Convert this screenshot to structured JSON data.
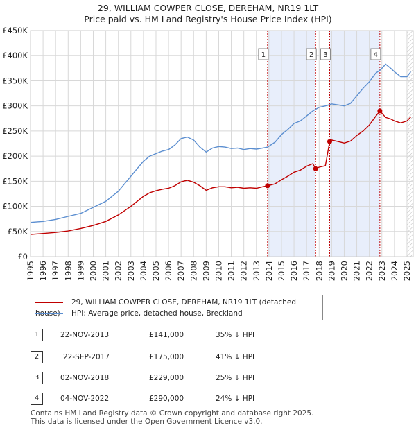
{
  "title_line1": "29, WILLIAM COWPER CLOSE, DEREHAM, NR19 1LT",
  "title_line2": "Price paid vs. HM Land Registry's House Price Index (HPI)",
  "chart_data": {
    "type": "line",
    "x_range": [
      1995.0,
      2025.5
    ],
    "ylim": [
      0,
      450000
    ],
    "y_ticks": [
      0,
      50000,
      100000,
      150000,
      200000,
      250000,
      300000,
      350000,
      400000,
      450000
    ],
    "y_tick_labels": [
      "£0",
      "£50K",
      "£100K",
      "£150K",
      "£200K",
      "£250K",
      "£300K",
      "£350K",
      "£400K",
      "£450K"
    ],
    "x_tick_labels": [
      "1995",
      "1996",
      "1997",
      "1998",
      "1999",
      "2000",
      "2001",
      "2002",
      "2003",
      "2004",
      "2005",
      "2006",
      "2007",
      "2008",
      "2009",
      "2010",
      "2011",
      "2012",
      "2013",
      "2014",
      "2015",
      "2016",
      "2017",
      "2018",
      "2019",
      "2020",
      "2021",
      "2022",
      "2023",
      "2024",
      "2025"
    ],
    "series": [
      {
        "name": "HPI: Average price, detached house, Breckland",
        "color": "#5b8ed0",
        "x": [
          1995.0,
          1996.0,
          1997.0,
          1998.0,
          1999.0,
          2000.0,
          2001.0,
          2002.0,
          2003.0,
          2003.5,
          2004.0,
          2004.5,
          2005.0,
          2005.5,
          2006.0,
          2006.5,
          2007.0,
          2007.5,
          2008.0,
          2008.5,
          2009.0,
          2009.5,
          2010.0,
          2010.5,
          2011.0,
          2011.5,
          2012.0,
          2012.5,
          2013.0,
          2013.5,
          2013.9,
          2014.5,
          2015.0,
          2015.5,
          2016.0,
          2016.5,
          2017.0,
          2017.5,
          2018.0,
          2018.5,
          2019.0,
          2019.5,
          2020.0,
          2020.5,
          2021.0,
          2021.5,
          2022.0,
          2022.5,
          2022.9,
          2023.3,
          2023.7,
          2024.0,
          2024.5,
          2025.0,
          2025.3
        ],
        "values": [
          68000,
          70000,
          74000,
          80000,
          86000,
          98000,
          110000,
          130000,
          160000,
          175000,
          190000,
          200000,
          205000,
          210000,
          213000,
          222000,
          235000,
          238000,
          232000,
          218000,
          208000,
          216000,
          219000,
          218000,
          215000,
          216000,
          213000,
          215000,
          214000,
          216000,
          218000,
          228000,
          243000,
          253000,
          265000,
          270000,
          280000,
          290000,
          297000,
          300000,
          304000,
          302000,
          300000,
          305000,
          320000,
          335000,
          348000,
          365000,
          372000,
          383000,
          375000,
          368000,
          358000,
          358000,
          368000
        ]
      },
      {
        "name": "29, WILLIAM COWPER CLOSE, DEREHAM, NR19 1LT (detached house)",
        "color": "#c00000",
        "x": [
          1995.0,
          1996.0,
          1997.0,
          1998.0,
          1999.0,
          2000.0,
          2001.0,
          2002.0,
          2003.0,
          2003.5,
          2004.0,
          2004.5,
          2005.0,
          2005.5,
          2006.0,
          2006.5,
          2007.0,
          2007.5,
          2008.0,
          2008.5,
          2009.0,
          2009.5,
          2010.0,
          2010.5,
          2011.0,
          2011.5,
          2012.0,
          2012.5,
          2013.0,
          2013.5,
          2013.9,
          2014.5,
          2015.0,
          2015.5,
          2016.0,
          2016.5,
          2017.0,
          2017.5,
          2017.72,
          2018.0,
          2018.5,
          2018.84,
          2019.0,
          2019.5,
          2020.0,
          2020.5,
          2021.0,
          2021.5,
          2022.0,
          2022.5,
          2022.84,
          2023.3,
          2023.7,
          2024.0,
          2024.5,
          2025.0,
          2025.3
        ],
        "values": [
          44000,
          46000,
          48000,
          51000,
          56000,
          62000,
          70000,
          83000,
          100000,
          110000,
          120000,
          127000,
          131000,
          134000,
          136000,
          141000,
          149000,
          152000,
          148000,
          141000,
          132000,
          137000,
          139000,
          139000,
          137000,
          138000,
          136000,
          137000,
          136000,
          139000,
          141000,
          145000,
          153000,
          160000,
          168000,
          172000,
          180000,
          185000,
          175000,
          178000,
          181000,
          229000,
          232000,
          229000,
          226000,
          230000,
          241000,
          250000,
          262000,
          279000,
          290000,
          277000,
          274000,
          270000,
          266000,
          270000,
          278000
        ]
      }
    ],
    "sales": [
      {
        "label": "1",
        "date": "22-NOV-2013",
        "x": 2013.89,
        "price": 141000,
        "price_text": "£141,000",
        "hpi_text": "35% ↓ HPI"
      },
      {
        "label": "2",
        "date": "22-SEP-2017",
        "x": 2017.72,
        "price": 175000,
        "price_text": "£175,000",
        "hpi_text": "41% ↓ HPI"
      },
      {
        "label": "3",
        "date": "02-NOV-2018",
        "x": 2018.84,
        "price": 229000,
        "price_text": "£229,000",
        "hpi_text": "25% ↓ HPI"
      },
      {
        "label": "4",
        "date": "04-NOV-2022",
        "x": 2022.84,
        "price": 290000,
        "price_text": "£290,000",
        "hpi_text": "24% ↓ HPI"
      }
    ],
    "shaded_ranges": [
      [
        2013.89,
        2017.72
      ],
      [
        2018.84,
        2022.84
      ]
    ],
    "hatched_from": 2025.0,
    "colors": {
      "shade": "#e8eefb",
      "sale_line": "#c00000",
      "grid": "#d8d8d8",
      "marker_box": "#888888"
    }
  },
  "legend": {
    "items": [
      {
        "label": "29, WILLIAM COWPER CLOSE, DEREHAM, NR19 1LT (detached house)",
        "color": "#c00000"
      },
      {
        "label": "HPI: Average price, detached house, Breckland",
        "color": "#5b8ed0"
      }
    ]
  },
  "footer_line1": "Contains HM Land Registry data © Crown copyright and database right 2025.",
  "footer_line2": "This data is licensed under the Open Government Licence v3.0."
}
